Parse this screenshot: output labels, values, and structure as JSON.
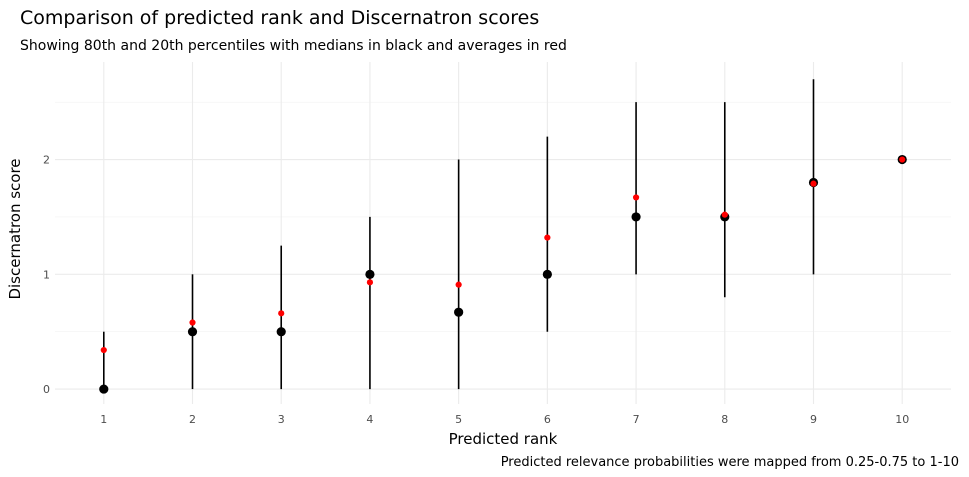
{
  "chart_data": {
    "type": "scatter",
    "title": "Comparison of predicted rank and Discernatron scores",
    "subtitle": "Showing 80th and 20th percentiles with medians in black and averages in red",
    "xlabel": "Predicted rank",
    "ylabel": "Discernatron score",
    "caption": "Predicted relevance probabilities were mapped from 0.25-0.75 to 1-10",
    "x_ticks": [
      "1",
      "2",
      "3",
      "4",
      "5",
      "6",
      "7",
      "8",
      "9",
      "10"
    ],
    "y_ticks": [
      "0",
      "1",
      "2"
    ],
    "xlim": [
      0.45,
      10.55
    ],
    "ylim": [
      -0.13,
      2.85
    ],
    "grid": true,
    "colors": {
      "median": "#000000",
      "average": "#ff0000",
      "interval": "#000000"
    },
    "series": [
      {
        "name": "medians",
        "x": [
          1,
          2,
          3,
          4,
          5,
          6,
          7,
          8,
          9,
          10
        ],
        "y": [
          0,
          0.5,
          0.5,
          1,
          0.67,
          1,
          1.5,
          1.5,
          1.8,
          2
        ]
      },
      {
        "name": "averages",
        "x": [
          1,
          2,
          3,
          4,
          5,
          6,
          7,
          8,
          9,
          10
        ],
        "y": [
          0.34,
          0.58,
          0.66,
          0.93,
          0.91,
          1.32,
          1.67,
          1.52,
          1.79,
          2
        ]
      },
      {
        "name": "20th percentile",
        "x": [
          1,
          2,
          3,
          4,
          5,
          6,
          7,
          8,
          9,
          10
        ],
        "y": [
          0,
          0,
          0,
          0,
          0,
          0.5,
          1,
          0.8,
          1,
          2
        ]
      },
      {
        "name": "80th percentile",
        "x": [
          1,
          2,
          3,
          4,
          5,
          6,
          7,
          8,
          9,
          10
        ],
        "y": [
          0.5,
          1,
          1.25,
          1.5,
          2,
          2.2,
          2.5,
          2.5,
          2.7,
          2
        ]
      }
    ]
  }
}
